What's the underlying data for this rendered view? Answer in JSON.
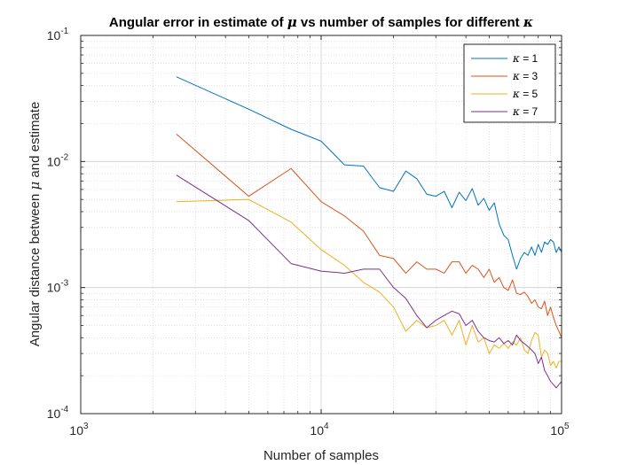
{
  "chart_data": {
    "type": "line",
    "title_prefix": "Angular error in estimate of ",
    "title_mu": "μ",
    "title_suffix": " vs number of samples for different ",
    "title_kappa": "κ",
    "xlabel": "Number of samples",
    "ylabel_prefix": "Angular distance between ",
    "ylabel_mu": "μ",
    "ylabel_suffix": " and estimate",
    "xscale": "log",
    "yscale": "log",
    "xlim": [
      1000,
      100000
    ],
    "ylim": [
      0.0001,
      0.1
    ],
    "x_ticks": [
      {
        "base": "10",
        "exp": "3",
        "value": 1000
      },
      {
        "base": "10",
        "exp": "4",
        "value": 10000
      },
      {
        "base": "10",
        "exp": "5",
        "value": 100000
      }
    ],
    "y_ticks": [
      {
        "base": "10",
        "exp": "-4",
        "value": 0.0001
      },
      {
        "base": "10",
        "exp": "-3",
        "value": 0.001
      },
      {
        "base": "10",
        "exp": "-2",
        "value": 0.01
      },
      {
        "base": "10",
        "exp": "-1",
        "value": 0.1
      }
    ],
    "grid": true,
    "minor_grid": true,
    "legend_position": "top-right",
    "series": [
      {
        "name_symbol": "κ",
        "name_value": " = 1",
        "color": "#0072BD",
        "x": [
          2500,
          5000,
          7500,
          10000,
          12500,
          15000,
          17500,
          20000,
          22500,
          25000,
          27500,
          30000,
          32500,
          35000,
          37500,
          40000,
          42500,
          45000,
          47500,
          50000,
          52500,
          55000,
          57500,
          60000,
          62500,
          65000,
          67500,
          70000,
          72500,
          75000,
          77500,
          80000,
          82500,
          85000,
          87500,
          90000,
          92500,
          95000,
          97500,
          100000
        ],
        "y": [
          0.047,
          0.026,
          0.018,
          0.0145,
          0.0094,
          0.0092,
          0.0062,
          0.0058,
          0.0084,
          0.0073,
          0.0055,
          0.0053,
          0.0058,
          0.0043,
          0.0057,
          0.0049,
          0.0061,
          0.0045,
          0.0051,
          0.0041,
          0.0047,
          0.0032,
          0.0026,
          0.0024,
          0.0018,
          0.0014,
          0.0017,
          0.0019,
          0.0018,
          0.0021,
          0.0018,
          0.0022,
          0.0019,
          0.0023,
          0.0022,
          0.0024,
          0.0023,
          0.0019,
          0.0021,
          0.0019
        ]
      },
      {
        "name_symbol": "κ",
        "name_value": " = 3",
        "color": "#D95319",
        "x": [
          2500,
          5000,
          7500,
          10000,
          12500,
          15000,
          17500,
          20000,
          22500,
          25000,
          27500,
          30000,
          32500,
          35000,
          37500,
          40000,
          42500,
          45000,
          47500,
          50000,
          52500,
          55000,
          57500,
          60000,
          62500,
          65000,
          67500,
          70000,
          72500,
          75000,
          77500,
          80000,
          82500,
          85000,
          87500,
          90000,
          92500,
          95000,
          97500,
          100000
        ],
        "y": [
          0.0165,
          0.0053,
          0.0088,
          0.0048,
          0.0037,
          0.0028,
          0.0018,
          0.0017,
          0.0013,
          0.0016,
          0.0014,
          0.0014,
          0.0013,
          0.0016,
          0.0016,
          0.0013,
          0.0015,
          0.0014,
          0.0012,
          0.0014,
          0.0011,
          0.0012,
          0.001,
          0.00095,
          0.00115,
          0.0009,
          0.00088,
          0.00092,
          0.00085,
          0.00075,
          0.0008,
          0.0007,
          0.00068,
          0.00078,
          0.0006,
          0.0007,
          0.00058,
          0.0005,
          0.00045,
          0.0004
        ]
      },
      {
        "name_symbol": "κ",
        "name_value": " = 5",
        "color": "#EDB120",
        "x": [
          2500,
          5000,
          7500,
          10000,
          12500,
          15000,
          17500,
          20000,
          22500,
          25000,
          27500,
          30000,
          32500,
          35000,
          37500,
          40000,
          42500,
          45000,
          47500,
          50000,
          52500,
          55000,
          57500,
          60000,
          62500,
          65000,
          67500,
          70000,
          72500,
          75000,
          77500,
          80000,
          82500,
          85000,
          87500,
          90000,
          92500,
          95000,
          97500,
          100000
        ],
        "y": [
          0.0048,
          0.005,
          0.0033,
          0.002,
          0.0015,
          0.0011,
          0.00092,
          0.0007,
          0.00045,
          0.00055,
          0.00048,
          0.0005,
          0.00055,
          0.00042,
          0.00055,
          0.00035,
          0.0005,
          0.00037,
          0.0004,
          0.0003,
          0.00035,
          0.00033,
          0.00036,
          0.00033,
          0.00037,
          0.00035,
          0.0004,
          0.00032,
          0.0003,
          0.00038,
          0.00044,
          0.00042,
          0.00028,
          0.00032,
          0.0003,
          0.00024,
          0.00026,
          0.00023,
          0.00026,
          0.00026
        ]
      },
      {
        "name_symbol": "κ",
        "name_value": " = 7",
        "color": "#7E2F8E",
        "x": [
          2500,
          5000,
          7500,
          10000,
          12500,
          15000,
          17500,
          20000,
          22500,
          25000,
          27500,
          30000,
          32500,
          35000,
          37500,
          40000,
          42500,
          45000,
          47500,
          50000,
          52500,
          55000,
          57500,
          60000,
          62500,
          65000,
          67500,
          70000,
          72500,
          75000,
          77500,
          80000,
          82500,
          85000,
          87500,
          90000,
          92500,
          95000,
          97500,
          100000
        ],
        "y": [
          0.0078,
          0.0034,
          0.00155,
          0.00135,
          0.0013,
          0.0014,
          0.0014,
          0.001,
          0.00082,
          0.0006,
          0.00048,
          0.00055,
          0.0006,
          0.00065,
          0.00062,
          0.0005,
          0.00055,
          0.00045,
          0.0004,
          0.00038,
          0.00037,
          0.0004,
          0.00036,
          0.00038,
          0.00035,
          0.00042,
          0.00038,
          0.00036,
          0.00034,
          0.00032,
          0.0003,
          0.00025,
          0.00028,
          0.00022,
          0.0002,
          0.00018,
          0.00017,
          0.00016,
          0.00017,
          0.00018
        ]
      }
    ]
  }
}
